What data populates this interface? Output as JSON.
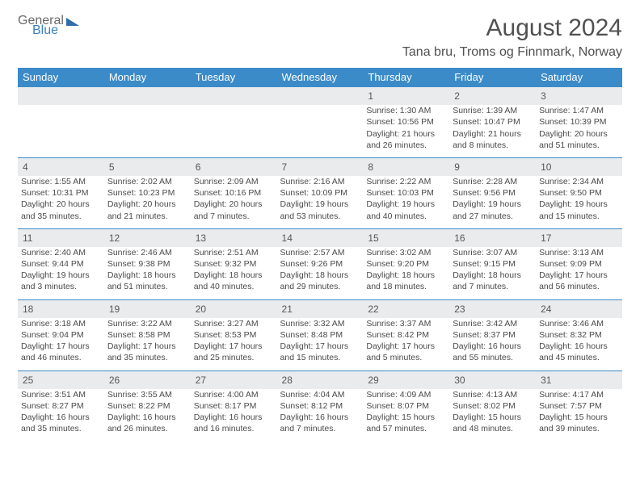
{
  "logo": {
    "text1": "General",
    "text2": "Blue"
  },
  "title": "August 2024",
  "subtitle": "Tana bru, Troms og Finnmark, Norway",
  "columns": [
    "Sunday",
    "Monday",
    "Tuesday",
    "Wednesday",
    "Thursday",
    "Friday",
    "Saturday"
  ],
  "colors": {
    "header_bg": "#3b8bc9",
    "header_fg": "#ffffff",
    "dayrow_bg": "#e9ebec",
    "border": "#3b8bc9",
    "text": "#4a4a4a"
  },
  "font": {
    "family": "Arial",
    "title_size": 30,
    "subtitle_size": 16,
    "col_size": 13,
    "body_size": 10.5
  },
  "weeks": [
    {
      "nums": [
        "",
        "",
        "",
        "",
        "1",
        "2",
        "3"
      ],
      "cells": [
        null,
        null,
        null,
        null,
        {
          "sr": "Sunrise: 1:30 AM",
          "ss": "Sunset: 10:56 PM",
          "d1": "Daylight: 21 hours",
          "d2": "and 26 minutes."
        },
        {
          "sr": "Sunrise: 1:39 AM",
          "ss": "Sunset: 10:47 PM",
          "d1": "Daylight: 21 hours",
          "d2": "and 8 minutes."
        },
        {
          "sr": "Sunrise: 1:47 AM",
          "ss": "Sunset: 10:39 PM",
          "d1": "Daylight: 20 hours",
          "d2": "and 51 minutes."
        }
      ]
    },
    {
      "nums": [
        "4",
        "5",
        "6",
        "7",
        "8",
        "9",
        "10"
      ],
      "cells": [
        {
          "sr": "Sunrise: 1:55 AM",
          "ss": "Sunset: 10:31 PM",
          "d1": "Daylight: 20 hours",
          "d2": "and 35 minutes."
        },
        {
          "sr": "Sunrise: 2:02 AM",
          "ss": "Sunset: 10:23 PM",
          "d1": "Daylight: 20 hours",
          "d2": "and 21 minutes."
        },
        {
          "sr": "Sunrise: 2:09 AM",
          "ss": "Sunset: 10:16 PM",
          "d1": "Daylight: 20 hours",
          "d2": "and 7 minutes."
        },
        {
          "sr": "Sunrise: 2:16 AM",
          "ss": "Sunset: 10:09 PM",
          "d1": "Daylight: 19 hours",
          "d2": "and 53 minutes."
        },
        {
          "sr": "Sunrise: 2:22 AM",
          "ss": "Sunset: 10:03 PM",
          "d1": "Daylight: 19 hours",
          "d2": "and 40 minutes."
        },
        {
          "sr": "Sunrise: 2:28 AM",
          "ss": "Sunset: 9:56 PM",
          "d1": "Daylight: 19 hours",
          "d2": "and 27 minutes."
        },
        {
          "sr": "Sunrise: 2:34 AM",
          "ss": "Sunset: 9:50 PM",
          "d1": "Daylight: 19 hours",
          "d2": "and 15 minutes."
        }
      ]
    },
    {
      "nums": [
        "11",
        "12",
        "13",
        "14",
        "15",
        "16",
        "17"
      ],
      "cells": [
        {
          "sr": "Sunrise: 2:40 AM",
          "ss": "Sunset: 9:44 PM",
          "d1": "Daylight: 19 hours",
          "d2": "and 3 minutes."
        },
        {
          "sr": "Sunrise: 2:46 AM",
          "ss": "Sunset: 9:38 PM",
          "d1": "Daylight: 18 hours",
          "d2": "and 51 minutes."
        },
        {
          "sr": "Sunrise: 2:51 AM",
          "ss": "Sunset: 9:32 PM",
          "d1": "Daylight: 18 hours",
          "d2": "and 40 minutes."
        },
        {
          "sr": "Sunrise: 2:57 AM",
          "ss": "Sunset: 9:26 PM",
          "d1": "Daylight: 18 hours",
          "d2": "and 29 minutes."
        },
        {
          "sr": "Sunrise: 3:02 AM",
          "ss": "Sunset: 9:20 PM",
          "d1": "Daylight: 18 hours",
          "d2": "and 18 minutes."
        },
        {
          "sr": "Sunrise: 3:07 AM",
          "ss": "Sunset: 9:15 PM",
          "d1": "Daylight: 18 hours",
          "d2": "and 7 minutes."
        },
        {
          "sr": "Sunrise: 3:13 AM",
          "ss": "Sunset: 9:09 PM",
          "d1": "Daylight: 17 hours",
          "d2": "and 56 minutes."
        }
      ]
    },
    {
      "nums": [
        "18",
        "19",
        "20",
        "21",
        "22",
        "23",
        "24"
      ],
      "cells": [
        {
          "sr": "Sunrise: 3:18 AM",
          "ss": "Sunset: 9:04 PM",
          "d1": "Daylight: 17 hours",
          "d2": "and 46 minutes."
        },
        {
          "sr": "Sunrise: 3:22 AM",
          "ss": "Sunset: 8:58 PM",
          "d1": "Daylight: 17 hours",
          "d2": "and 35 minutes."
        },
        {
          "sr": "Sunrise: 3:27 AM",
          "ss": "Sunset: 8:53 PM",
          "d1": "Daylight: 17 hours",
          "d2": "and 25 minutes."
        },
        {
          "sr": "Sunrise: 3:32 AM",
          "ss": "Sunset: 8:48 PM",
          "d1": "Daylight: 17 hours",
          "d2": "and 15 minutes."
        },
        {
          "sr": "Sunrise: 3:37 AM",
          "ss": "Sunset: 8:42 PM",
          "d1": "Daylight: 17 hours",
          "d2": "and 5 minutes."
        },
        {
          "sr": "Sunrise: 3:42 AM",
          "ss": "Sunset: 8:37 PM",
          "d1": "Daylight: 16 hours",
          "d2": "and 55 minutes."
        },
        {
          "sr": "Sunrise: 3:46 AM",
          "ss": "Sunset: 8:32 PM",
          "d1": "Daylight: 16 hours",
          "d2": "and 45 minutes."
        }
      ]
    },
    {
      "nums": [
        "25",
        "26",
        "27",
        "28",
        "29",
        "30",
        "31"
      ],
      "cells": [
        {
          "sr": "Sunrise: 3:51 AM",
          "ss": "Sunset: 8:27 PM",
          "d1": "Daylight: 16 hours",
          "d2": "and 35 minutes."
        },
        {
          "sr": "Sunrise: 3:55 AM",
          "ss": "Sunset: 8:22 PM",
          "d1": "Daylight: 16 hours",
          "d2": "and 26 minutes."
        },
        {
          "sr": "Sunrise: 4:00 AM",
          "ss": "Sunset: 8:17 PM",
          "d1": "Daylight: 16 hours",
          "d2": "and 16 minutes."
        },
        {
          "sr": "Sunrise: 4:04 AM",
          "ss": "Sunset: 8:12 PM",
          "d1": "Daylight: 16 hours",
          "d2": "and 7 minutes."
        },
        {
          "sr": "Sunrise: 4:09 AM",
          "ss": "Sunset: 8:07 PM",
          "d1": "Daylight: 15 hours",
          "d2": "and 57 minutes."
        },
        {
          "sr": "Sunrise: 4:13 AM",
          "ss": "Sunset: 8:02 PM",
          "d1": "Daylight: 15 hours",
          "d2": "and 48 minutes."
        },
        {
          "sr": "Sunrise: 4:17 AM",
          "ss": "Sunset: 7:57 PM",
          "d1": "Daylight: 15 hours",
          "d2": "and 39 minutes."
        }
      ]
    }
  ]
}
